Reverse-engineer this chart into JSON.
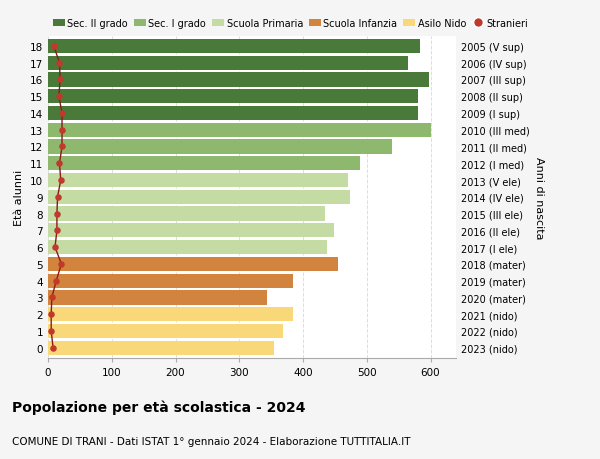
{
  "ages": [
    0,
    1,
    2,
    3,
    4,
    5,
    6,
    7,
    8,
    9,
    10,
    11,
    12,
    13,
    14,
    15,
    16,
    17,
    18
  ],
  "right_labels": [
    "2023 (nido)",
    "2022 (nido)",
    "2021 (nido)",
    "2020 (mater)",
    "2019 (mater)",
    "2018 (mater)",
    "2017 (I ele)",
    "2016 (II ele)",
    "2015 (III ele)",
    "2014 (IV ele)",
    "2013 (V ele)",
    "2012 (I med)",
    "2011 (II med)",
    "2010 (III med)",
    "2009 (I sup)",
    "2008 (II sup)",
    "2007 (III sup)",
    "2006 (IV sup)",
    "2005 (V sup)"
  ],
  "bar_values": [
    355,
    368,
    385,
    343,
    385,
    455,
    438,
    448,
    435,
    473,
    470,
    490,
    540,
    600,
    580,
    580,
    598,
    565,
    583
  ],
  "bar_colors": [
    "#f9d87a",
    "#f9d87a",
    "#f9d87a",
    "#d2843e",
    "#d2843e",
    "#d2843e",
    "#c5dba4",
    "#c5dba4",
    "#c5dba4",
    "#c5dba4",
    "#c5dba4",
    "#8db86e",
    "#8db86e",
    "#8db86e",
    "#4a7a3a",
    "#4a7a3a",
    "#4a7a3a",
    "#4a7a3a",
    "#4a7a3a"
  ],
  "stranieri_values": [
    8,
    5,
    5,
    6,
    13,
    21,
    11,
    14,
    14,
    15,
    20,
    18,
    22,
    22,
    22,
    17,
    19,
    18,
    9
  ],
  "ylabel_left": "Età alunni",
  "ylabel_right": "Anni di nascita",
  "xlim": [
    0,
    640
  ],
  "xticks": [
    0,
    100,
    200,
    300,
    400,
    500,
    600
  ],
  "title_bold": "Popolazione per età scolastica - 2024",
  "subtitle": "COMUNE DI TRANI - Dati ISTAT 1° gennaio 2024 - Elaborazione TUTTITALIA.IT",
  "legend_items": [
    {
      "label": "Sec. II grado",
      "color": "#4a7a3a"
    },
    {
      "label": "Sec. I grado",
      "color": "#8db86e"
    },
    {
      "label": "Scuola Primaria",
      "color": "#c5dba4"
    },
    {
      "label": "Scuola Infanzia",
      "color": "#d2843e"
    },
    {
      "label": "Asilo Nido",
      "color": "#f9d87a"
    },
    {
      "label": "Stranieri",
      "color": "#c0392b"
    }
  ],
  "bg_color": "#f5f5f5",
  "bar_bg_color": "#ffffff",
  "grid_color": "#dddddd"
}
